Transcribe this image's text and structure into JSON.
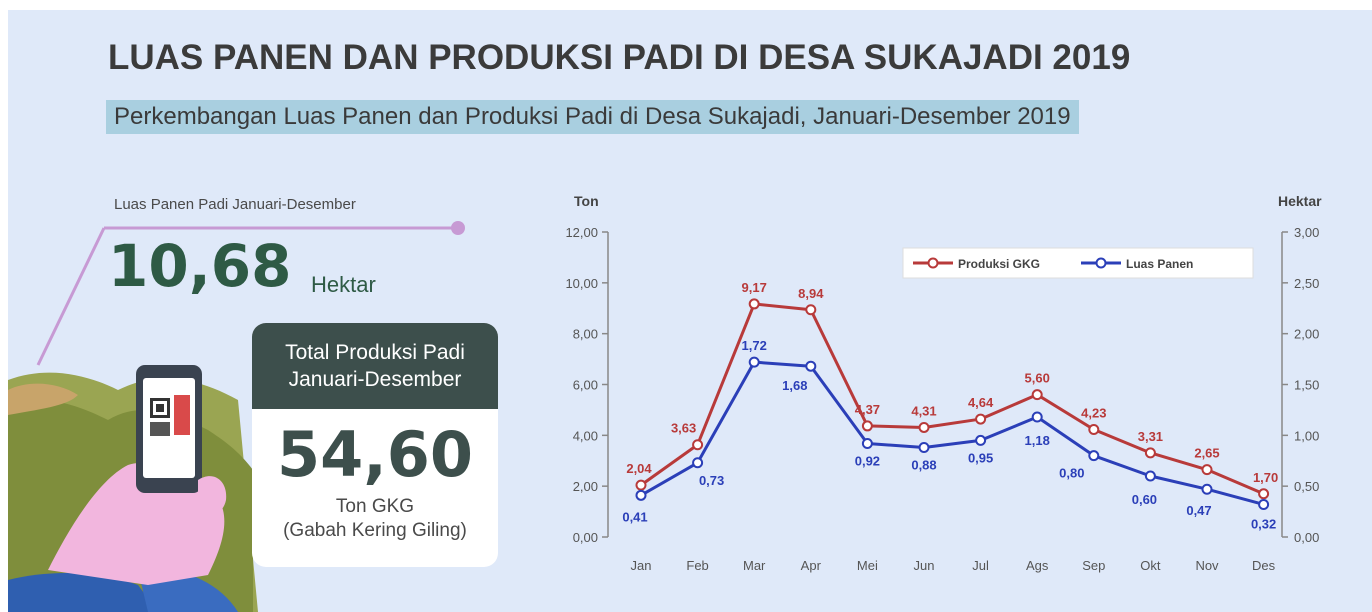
{
  "title": "LUAS PANEN DAN PRODUKSI PADI DI DESA SUKAJADI 2019",
  "subtitle": "Perkembangan Luas Panen dan Produksi Padi di Desa Sukajadi, Januari-Desember 2019",
  "luas_panen": {
    "label": "Luas Panen Padi Januari-Desember",
    "value": "10,68",
    "unit": "Hektar"
  },
  "produksi": {
    "header_line1": "Total Produksi Padi",
    "header_line2": "Januari-Desember",
    "value": "54,60",
    "unit": "Ton GKG",
    "sub": "(Gabah Kering Giling)"
  },
  "colors": {
    "produksi": "#b83a3a",
    "luas": "#2b3fb8",
    "axis": "#888888"
  },
  "chart_data": {
    "type": "line",
    "categories": [
      "Jan",
      "Feb",
      "Mar",
      "Apr",
      "Mei",
      "Jun",
      "Jul",
      "Ags",
      "Sep",
      "Okt",
      "Nov",
      "Des"
    ],
    "left_axis": {
      "title": "Ton",
      "ylim": [
        0,
        12
      ],
      "ticks": [
        "0,00",
        "2,00",
        "4,00",
        "6,00",
        "8,00",
        "10,00",
        "12,00"
      ]
    },
    "right_axis": {
      "title": "Hektar",
      "ylim": [
        0,
        3
      ],
      "ticks": [
        "0,00",
        "0,50",
        "1,00",
        "1,50",
        "2,00",
        "2,50",
        "3,00"
      ]
    },
    "series": [
      {
        "name": "Produksi GKG",
        "axis": "left",
        "values": [
          2.04,
          3.63,
          9.17,
          8.94,
          4.37,
          4.31,
          4.64,
          5.6,
          4.23,
          3.31,
          2.65,
          1.7
        ],
        "labels": [
          "2,04",
          "3,63",
          "9,17",
          "8,94",
          "4,37",
          "4,31",
          "4,64",
          "5,60",
          "4,23",
          "3,31",
          "2,65",
          "1,70"
        ]
      },
      {
        "name": "Luas Panen",
        "axis": "right",
        "values": [
          0.41,
          0.73,
          1.72,
          1.68,
          0.92,
          0.88,
          0.95,
          1.18,
          0.8,
          0.6,
          0.47,
          0.32
        ],
        "labels": [
          "0,41",
          "0,73",
          "1,72",
          "1,68",
          "0,92",
          "0,88",
          "0,95",
          "1,18",
          "0,80",
          "0,60",
          "0,47",
          "0,32"
        ]
      }
    ],
    "legend": "top-right",
    "grid": false
  }
}
